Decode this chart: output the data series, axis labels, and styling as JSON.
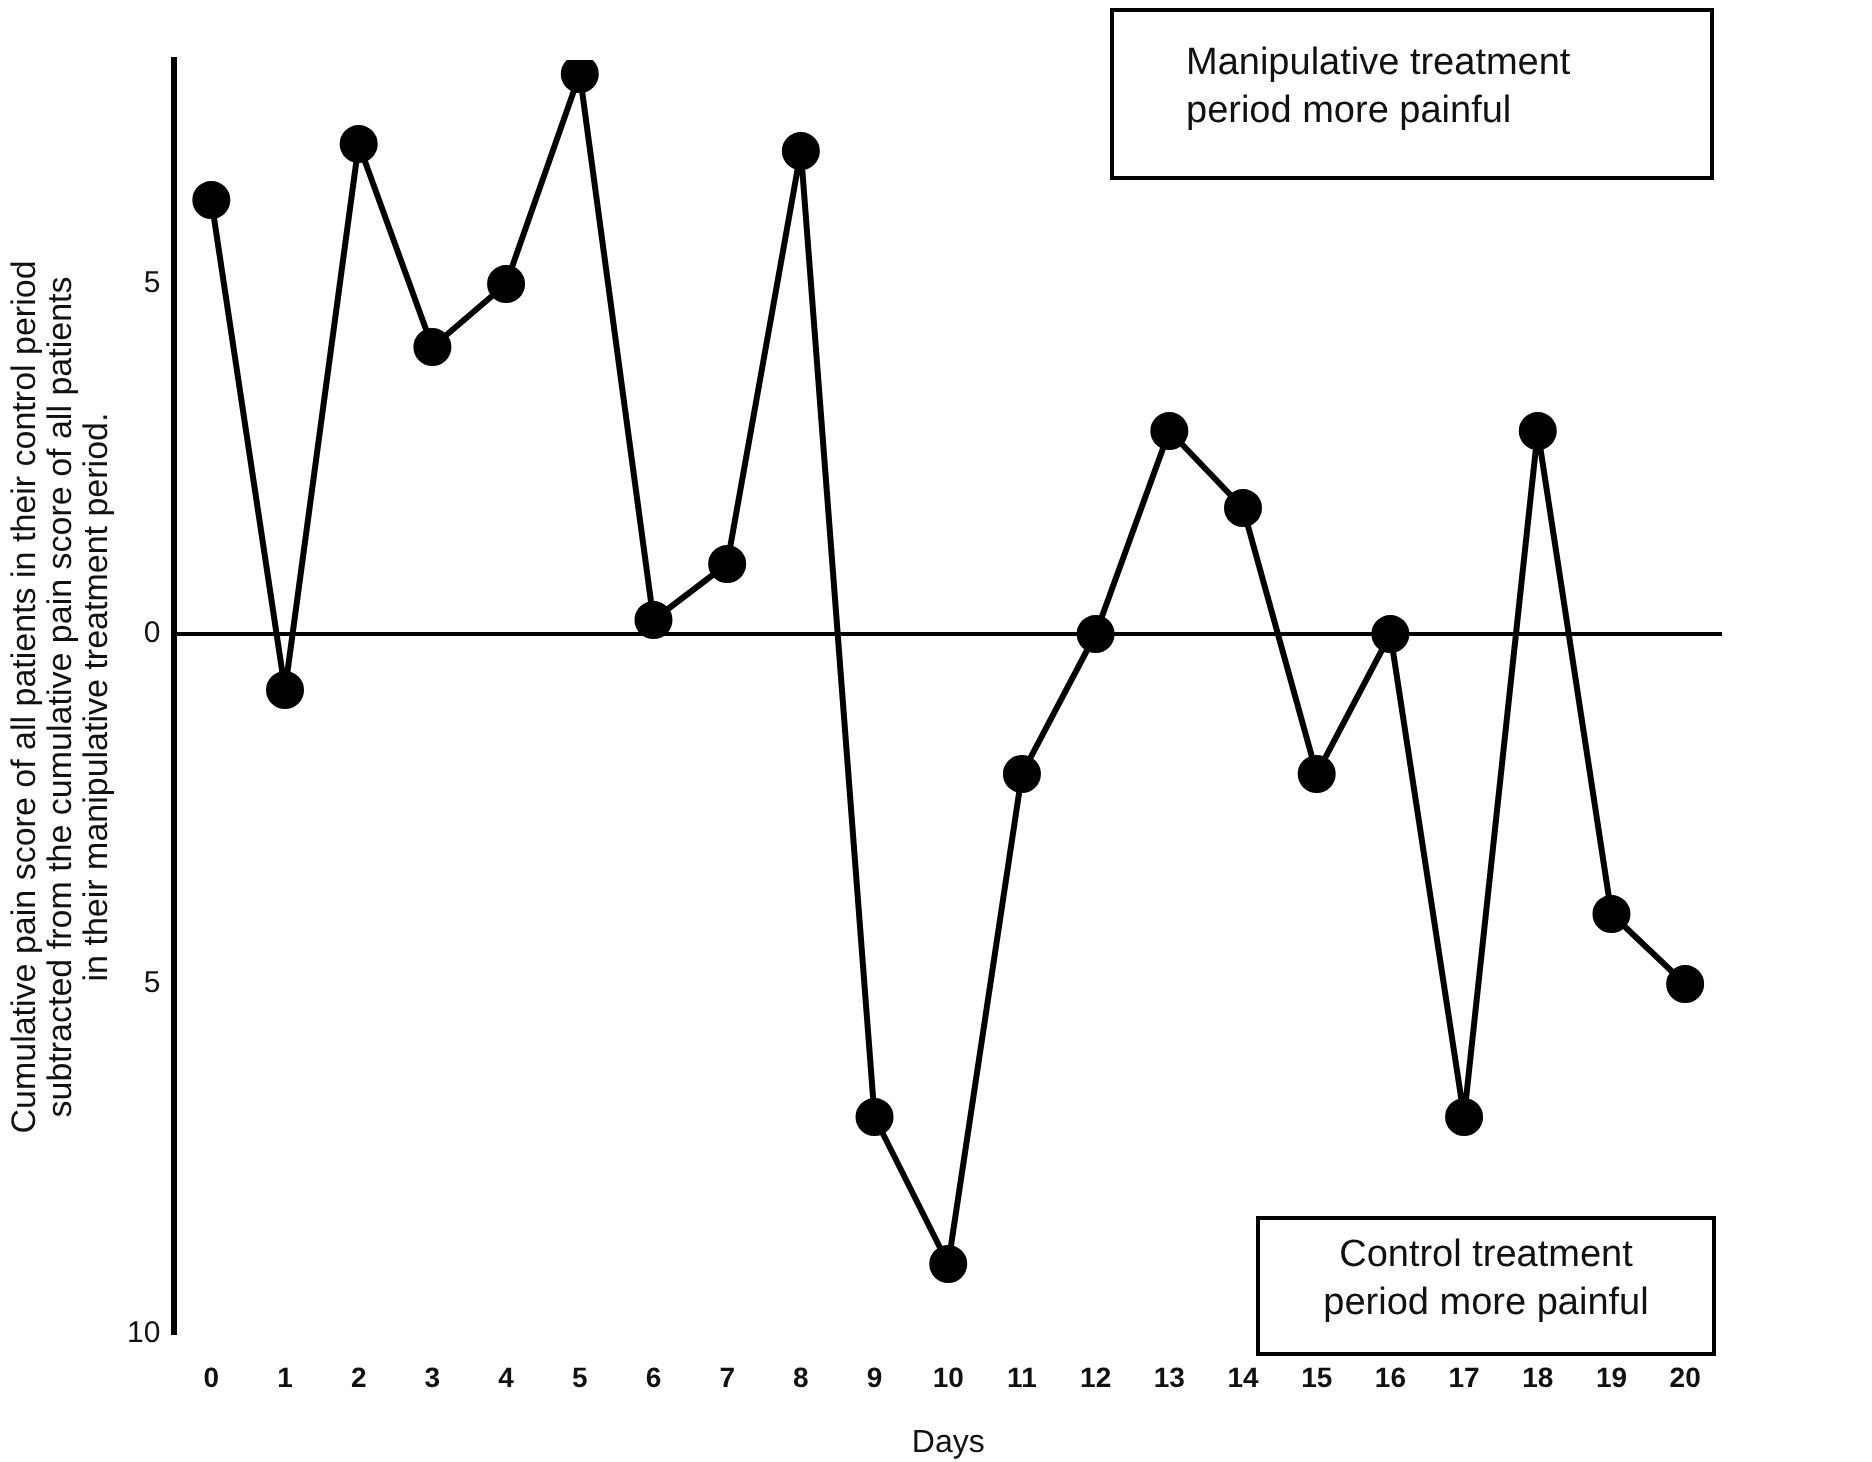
{
  "chart_data": {
    "type": "line",
    "ylabel": "Cumulative pain score of all patients in their control period\nsubtracted from the cumulative pain score of all patients\nin their manipulative treatment period.",
    "xlabel": "Days",
    "x": [
      0,
      1,
      2,
      3,
      4,
      5,
      6,
      7,
      8,
      9,
      10,
      11,
      12,
      13,
      14,
      15,
      16,
      17,
      18,
      19,
      20
    ],
    "xlim": [
      -0.5,
      20.5
    ],
    "xticks": [
      0,
      1,
      2,
      3,
      4,
      5,
      6,
      7,
      8,
      9,
      10,
      11,
      12,
      13,
      14,
      15,
      16,
      17,
      18,
      19,
      20
    ],
    "series": [
      {
        "color": "#000000",
        "values": [
          6.2,
          -0.8,
          7.0,
          4.1,
          5.0,
          8.0,
          0.2,
          1.0,
          6.9,
          -6.9,
          -9.0,
          -2.0,
          0.0,
          2.9,
          1.8,
          -2.0,
          0.0,
          -6.9,
          2.9,
          -4.0,
          -5.0
        ]
      }
    ],
    "ylim": [
      -10,
      8.2
    ],
    "yticks": [
      {
        "value": 5,
        "label": "5"
      },
      0,
      {
        "value": -5,
        "label": "5"
      },
      {
        "value": -10,
        "label": "10"
      }
    ],
    "ref_lines": [
      {
        "axis": "y",
        "value": 0,
        "color": "#000000"
      }
    ],
    "annotations": [
      "Manipulative treatment\nperiod more painful",
      "Control treatment\nperiod more painful"
    ],
    "marker": "circle",
    "line_style": "solid",
    "grid": false,
    "legend": false
  }
}
